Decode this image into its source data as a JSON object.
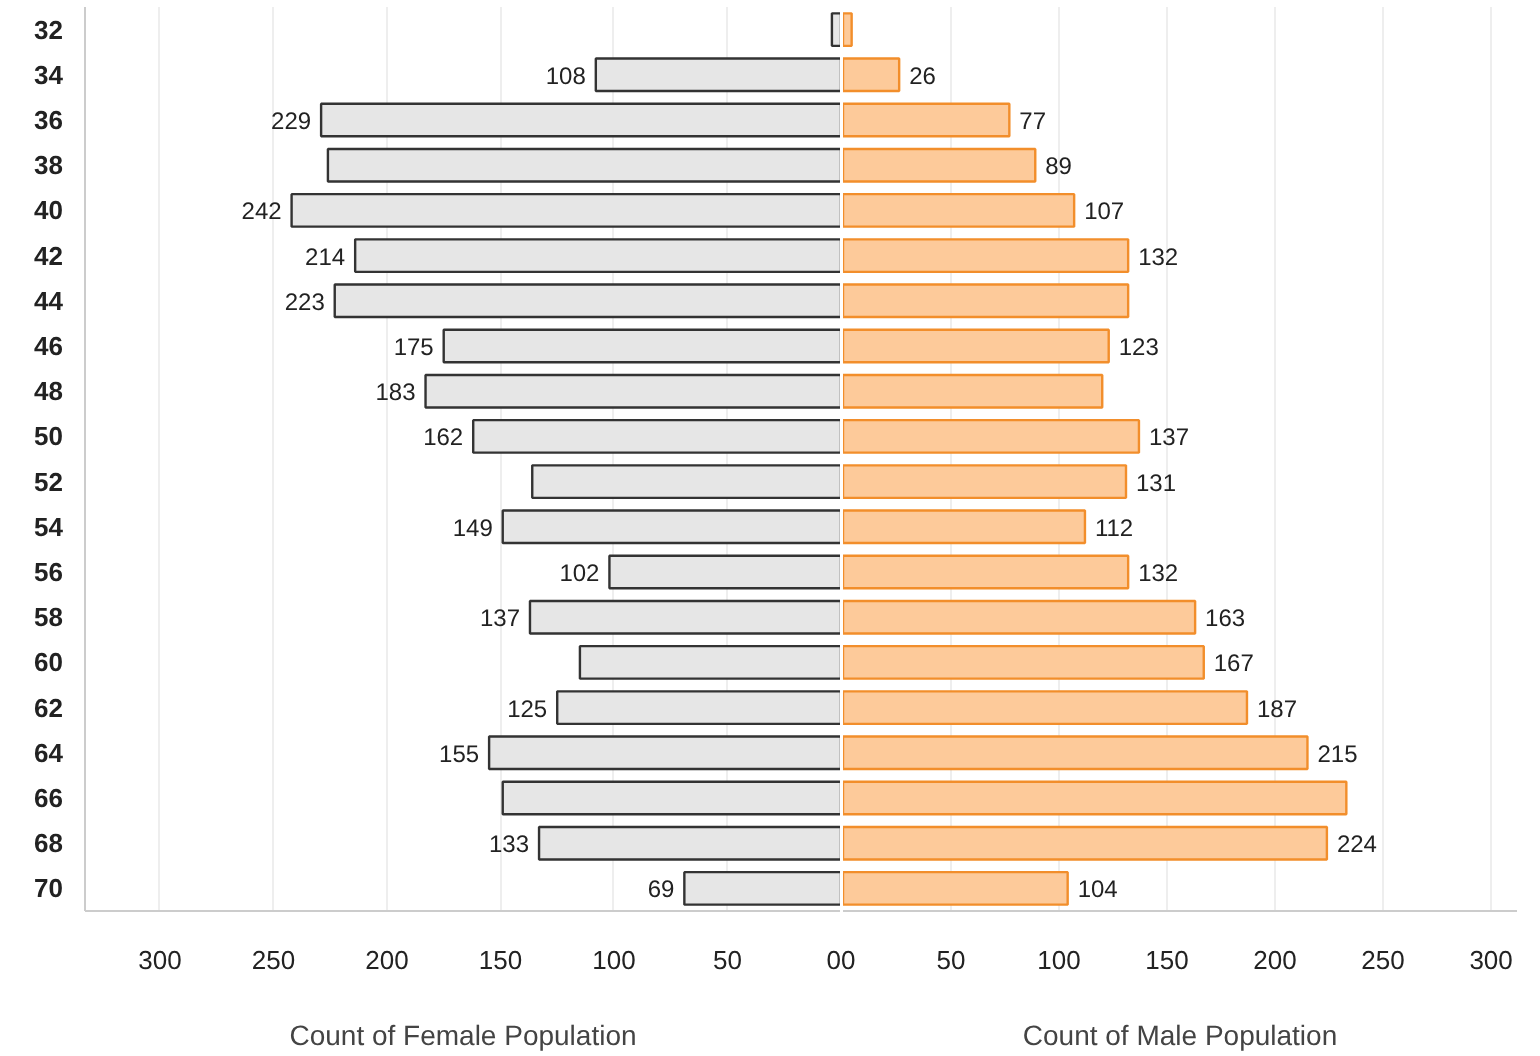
{
  "chart_data": [
    {
      "type": "bar",
      "orientation": "horizontal",
      "categories": [
        "32",
        "34",
        "36",
        "38",
        "40",
        "42",
        "44",
        "46",
        "48",
        "50",
        "52",
        "54",
        "56",
        "58",
        "60",
        "62",
        "64",
        "66",
        "68",
        "70"
      ],
      "series": [
        {
          "color": "#e6e6e6",
          "values": [
            4,
            108,
            229,
            226,
            242,
            214,
            223,
            175,
            183,
            162,
            136,
            149,
            102,
            137,
            115,
            125,
            155,
            149,
            133,
            69
          ],
          "value_labels": [
            null,
            "108",
            "229",
            null,
            "242",
            "214",
            "223",
            "175",
            "183",
            "162",
            null,
            "149",
            "102",
            "137",
            null,
            "125",
            "155",
            null,
            "133",
            "69"
          ]
        }
      ],
      "xlabel": "Count of Female Population",
      "xlim": [
        333,
        0
      ],
      "xticks": [
        300,
        250,
        200,
        150,
        100,
        50,
        0
      ],
      "grid": "x"
    },
    {
      "type": "bar",
      "orientation": "horizontal",
      "categories": [
        "32",
        "34",
        "36",
        "38",
        "40",
        "42",
        "44",
        "46",
        "48",
        "50",
        "52",
        "54",
        "56",
        "58",
        "60",
        "62",
        "64",
        "66",
        "68",
        "70"
      ],
      "series": [
        {
          "color": "#fdca9a",
          "values": [
            4,
            26,
            77,
            89,
            107,
            132,
            132,
            123,
            120,
            137,
            131,
            112,
            132,
            163,
            167,
            187,
            215,
            233,
            224,
            104
          ],
          "value_labels": [
            null,
            "26",
            "77",
            "89",
            "107",
            "132",
            null,
            "123",
            null,
            "137",
            "131",
            "112",
            "132",
            "163",
            "167",
            "187",
            "215",
            null,
            "224",
            "104"
          ]
        }
      ],
      "xlabel": "Count of Male Population",
      "xlim": [
        0,
        312
      ],
      "xticks": [
        0,
        50,
        100,
        150,
        200,
        250,
        300
      ],
      "grid": "x",
      "tick_labels": "x"
    }
  ]
}
